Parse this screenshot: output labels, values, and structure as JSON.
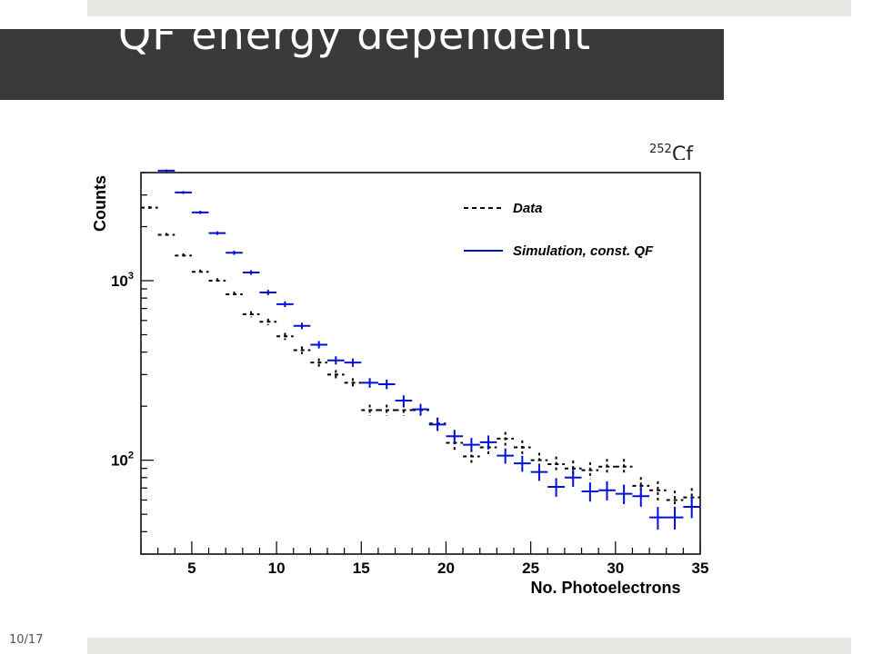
{
  "slide": {
    "title": "QF energy dependent",
    "number": "10/17",
    "source_label": {
      "mass": "252",
      "element": "Cf"
    }
  },
  "colors": {
    "title_bar": "#3a3a39",
    "strip": "#e6e8e4",
    "data_series": "#000000",
    "simulation_series": "#0010d8"
  },
  "chart_data": {
    "type": "scatter",
    "xlabel": "No. Photoelectrons",
    "ylabel": "Counts",
    "x_range": [
      2,
      35
    ],
    "y_range": [
      30,
      4000
    ],
    "y_scale": "log",
    "x_ticks": [
      5,
      10,
      15,
      20,
      25,
      30,
      35
    ],
    "y_ticks": [
      {
        "value": 100,
        "base": "10",
        "exp": "2"
      },
      {
        "value": 1000,
        "base": "10",
        "exp": "3"
      }
    ],
    "legend_position": "top-right",
    "series": [
      {
        "name": "Data",
        "style": "dashed",
        "points": [
          [
            2.5,
            2550
          ],
          [
            3.5,
            1800
          ],
          [
            4.5,
            1380
          ],
          [
            5.5,
            1120
          ],
          [
            6.5,
            1000
          ],
          [
            7.5,
            840
          ],
          [
            8.5,
            650
          ],
          [
            9.5,
            590
          ],
          [
            10.5,
            490
          ],
          [
            11.5,
            410
          ],
          [
            12.5,
            350
          ],
          [
            13.5,
            300
          ],
          [
            14.5,
            270
          ],
          [
            15.5,
            190
          ],
          [
            16.5,
            190
          ],
          [
            17.5,
            190
          ],
          [
            18.5,
            190
          ],
          [
            19.5,
            160
          ],
          [
            20.5,
            125
          ],
          [
            21.5,
            105
          ],
          [
            22.5,
            118
          ],
          [
            23.5,
            132
          ],
          [
            24.5,
            118
          ],
          [
            25.5,
            100
          ],
          [
            26.5,
            95
          ],
          [
            27.5,
            90
          ],
          [
            28.5,
            88
          ],
          [
            29.5,
            92
          ],
          [
            30.5,
            92
          ],
          [
            31.5,
            72
          ],
          [
            32.5,
            68
          ],
          [
            33.5,
            60
          ],
          [
            34.5,
            62
          ]
        ]
      },
      {
        "name": "Simulation, const. QF",
        "style": "solid",
        "points": [
          [
            3.5,
            4100
          ],
          [
            4.5,
            3100
          ],
          [
            5.5,
            2400
          ],
          [
            6.5,
            1840
          ],
          [
            7.5,
            1430
          ],
          [
            8.5,
            1110
          ],
          [
            9.5,
            860
          ],
          [
            10.5,
            740
          ],
          [
            11.5,
            560
          ],
          [
            12.5,
            440
          ],
          [
            13.5,
            360
          ],
          [
            14.5,
            350
          ],
          [
            15.5,
            270
          ],
          [
            16.5,
            265
          ],
          [
            17.5,
            215
          ],
          [
            18.5,
            192
          ],
          [
            19.5,
            158
          ],
          [
            20.5,
            136
          ],
          [
            21.5,
            122
          ],
          [
            22.5,
            126
          ],
          [
            23.5,
            106
          ],
          [
            24.5,
            96
          ],
          [
            25.5,
            86
          ],
          [
            26.5,
            71
          ],
          [
            27.5,
            80
          ],
          [
            28.5,
            67
          ],
          [
            29.5,
            68
          ],
          [
            30.5,
            65
          ],
          [
            31.5,
            63
          ],
          [
            32.5,
            48
          ],
          [
            33.5,
            48
          ],
          [
            34.5,
            55
          ]
        ]
      }
    ]
  }
}
